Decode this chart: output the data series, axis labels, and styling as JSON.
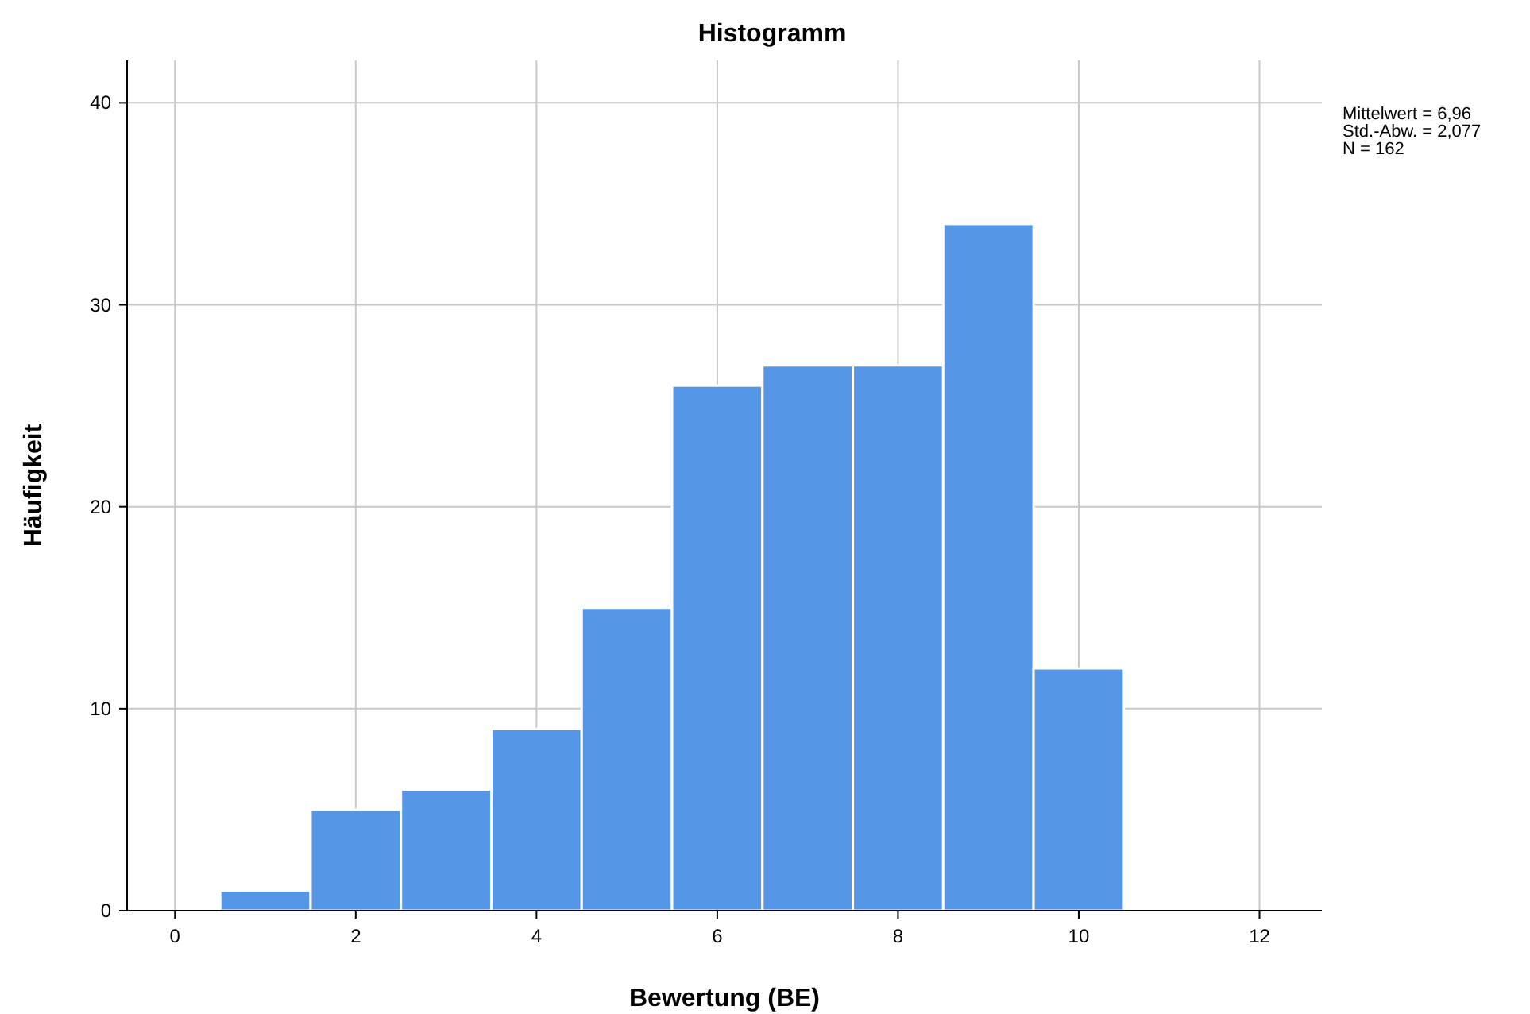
{
  "chart_data": {
    "type": "histogram",
    "title": "Histogramm",
    "xlabel": "Bewertung (BE)",
    "ylabel": "Häufigkeit",
    "bins": [
      0.5,
      1.5,
      2.5,
      3.5,
      4.5,
      5.5,
      6.5,
      7.5,
      8.5,
      9.5,
      10.5
    ],
    "values": [
      1,
      5,
      6,
      9,
      15,
      26,
      27,
      27,
      34,
      12
    ],
    "color": "#5596e6",
    "xlim": [
      -0.53,
      12.69
    ],
    "xticks": [
      0,
      2,
      4,
      6,
      8,
      10,
      12
    ],
    "ylim": [
      0,
      42.1
    ],
    "yticks": [
      0,
      10,
      20,
      30,
      40
    ],
    "grid": true,
    "annotations": [
      "Mittelwert = 6,96",
      "Std.-Abw. = 2,077",
      "N = 162"
    ]
  }
}
